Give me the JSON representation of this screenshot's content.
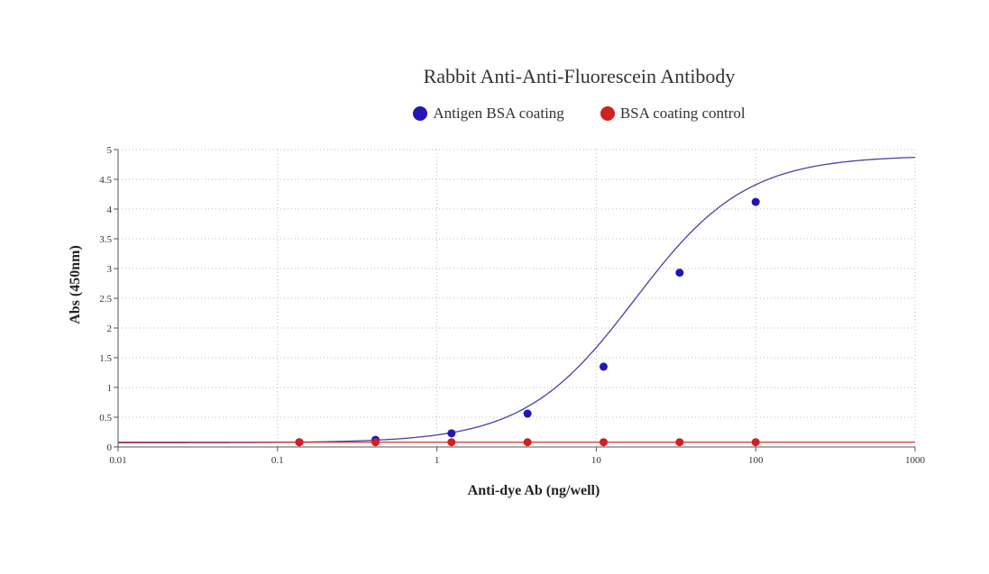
{
  "chart_data": {
    "type": "scatter",
    "title": "Rabbit Anti-Anti-Fluorescein Antibody",
    "xlabel": "Anti-dye Ab (ng/well)",
    "ylabel": "Abs (450nm)",
    "x_scale": "log",
    "xlim": [
      0.01,
      1000
    ],
    "ylim": [
      0,
      5
    ],
    "x_ticks": [
      "0.01",
      "0.1",
      "1",
      "10",
      "100",
      "1000"
    ],
    "y_ticks": [
      "0",
      "0.5",
      "1",
      "1.5",
      "2",
      "2.5",
      "3",
      "3.5",
      "4",
      "4.5",
      "5"
    ],
    "grid": true,
    "legend_position": "top",
    "series": [
      {
        "name": "Antigen BSA coating",
        "color": "#2016b8",
        "line_color": "#4a3fa8",
        "fit": "four-parameter logistic",
        "x": [
          0.137,
          0.412,
          1.235,
          3.704,
          11.11,
          33.33,
          100
        ],
        "y": [
          0.08,
          0.12,
          0.23,
          0.56,
          1.35,
          2.93,
          4.12
        ]
      },
      {
        "name": "BSA coating control",
        "color": "#cc2222",
        "line_color": "#d03030",
        "fit": "constant",
        "x": [
          0.137,
          0.412,
          1.235,
          3.704,
          11.11,
          33.33,
          100
        ],
        "y": [
          0.08,
          0.08,
          0.08,
          0.08,
          0.08,
          0.08,
          0.08
        ]
      }
    ]
  }
}
